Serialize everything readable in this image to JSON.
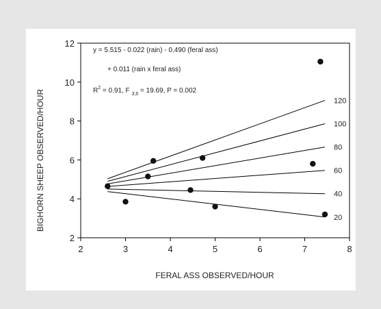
{
  "chart_data": {
    "type": "scatter",
    "xlabel": "FERAL ASS OBSERVED/HOUR",
    "ylabel": "BIGHORN SHEEP OBSERVED/HOUR",
    "xlim": [
      2,
      8
    ],
    "ylim": [
      2,
      12
    ],
    "xticks": [
      2,
      3,
      4,
      5,
      6,
      7,
      8
    ],
    "yticks": [
      2,
      4,
      6,
      8,
      10,
      12
    ],
    "grid": false,
    "points": [
      {
        "x": 2.6,
        "y": 4.65
      },
      {
        "x": 3.0,
        "y": 3.85
      },
      {
        "x": 3.5,
        "y": 5.15
      },
      {
        "x": 3.62,
        "y": 5.95
      },
      {
        "x": 4.45,
        "y": 4.45
      },
      {
        "x": 4.72,
        "y": 6.1
      },
      {
        "x": 5.0,
        "y": 3.6
      },
      {
        "x": 7.18,
        "y": 5.8
      },
      {
        "x": 7.35,
        "y": 11.05
      },
      {
        "x": 7.45,
        "y": 3.2
      }
    ],
    "regression": {
      "intercept": 5.515,
      "rain_coef": -0.022,
      "ass_coef": -0.49,
      "interaction": 0.011,
      "x_range": [
        2.6,
        7.45
      ],
      "series": [
        {
          "label": "120",
          "rain": 120
        },
        {
          "label": "100",
          "rain": 100
        },
        {
          "label": "80",
          "rain": 80
        },
        {
          "label": "60",
          "rain": 60
        },
        {
          "label": "40",
          "rain": 40
        },
        {
          "label": "20",
          "rain": 20
        }
      ]
    },
    "annotations": {
      "equation_line1": "y = 5.515 - 0.022 (rain) - 0.490 (feral ass)",
      "equation_line2": "+ 0.011 (rain x feral ass)",
      "r_prefix": "R",
      "r_sup": "2",
      "r_mid": " = 0.91, F ",
      "f_sub": "3,6",
      "r_tail": " = 19.69, P = 0.002"
    }
  }
}
